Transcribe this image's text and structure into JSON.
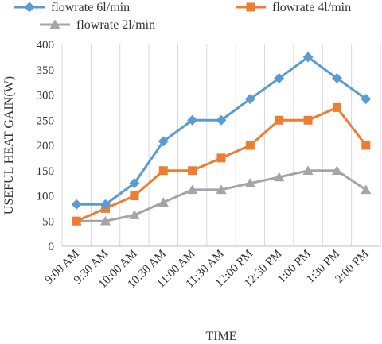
{
  "chart_data": {
    "type": "line",
    "title": "",
    "xlabel": "TIME",
    "ylabel": "USEFUL HEAT GAIN(W)",
    "categories": [
      "9:00 AM",
      "9:30 AM",
      "10:00 AM",
      "10:30 AM",
      "11:00 AM",
      "11:30 AM",
      "12:00 PM",
      "12:30 PM",
      "1:00 PM",
      "1:30 PM",
      "2:00 PM"
    ],
    "ylim": [
      0,
      400
    ],
    "yticks": [
      0,
      50,
      100,
      150,
      200,
      250,
      300,
      350,
      400
    ],
    "grid": "vertical",
    "legend_position": "top",
    "series": [
      {
        "name": "flowrate 6l/min",
        "color": "#5B9BD5",
        "marker": "diamond",
        "values": [
          83,
          83,
          125,
          208,
          250,
          250,
          292,
          333,
          375,
          333,
          292
        ]
      },
      {
        "name": "flowrate 4l/min",
        "color": "#ED7D31",
        "marker": "square",
        "values": [
          50,
          75,
          100,
          150,
          150,
          175,
          200,
          250,
          250,
          275,
          200
        ]
      },
      {
        "name": "flowrate 2l/min",
        "color": "#A5A5A5",
        "marker": "triangle",
        "values": [
          50,
          50,
          62,
          87,
          112,
          112,
          125,
          137,
          150,
          150,
          112
        ]
      }
    ]
  }
}
